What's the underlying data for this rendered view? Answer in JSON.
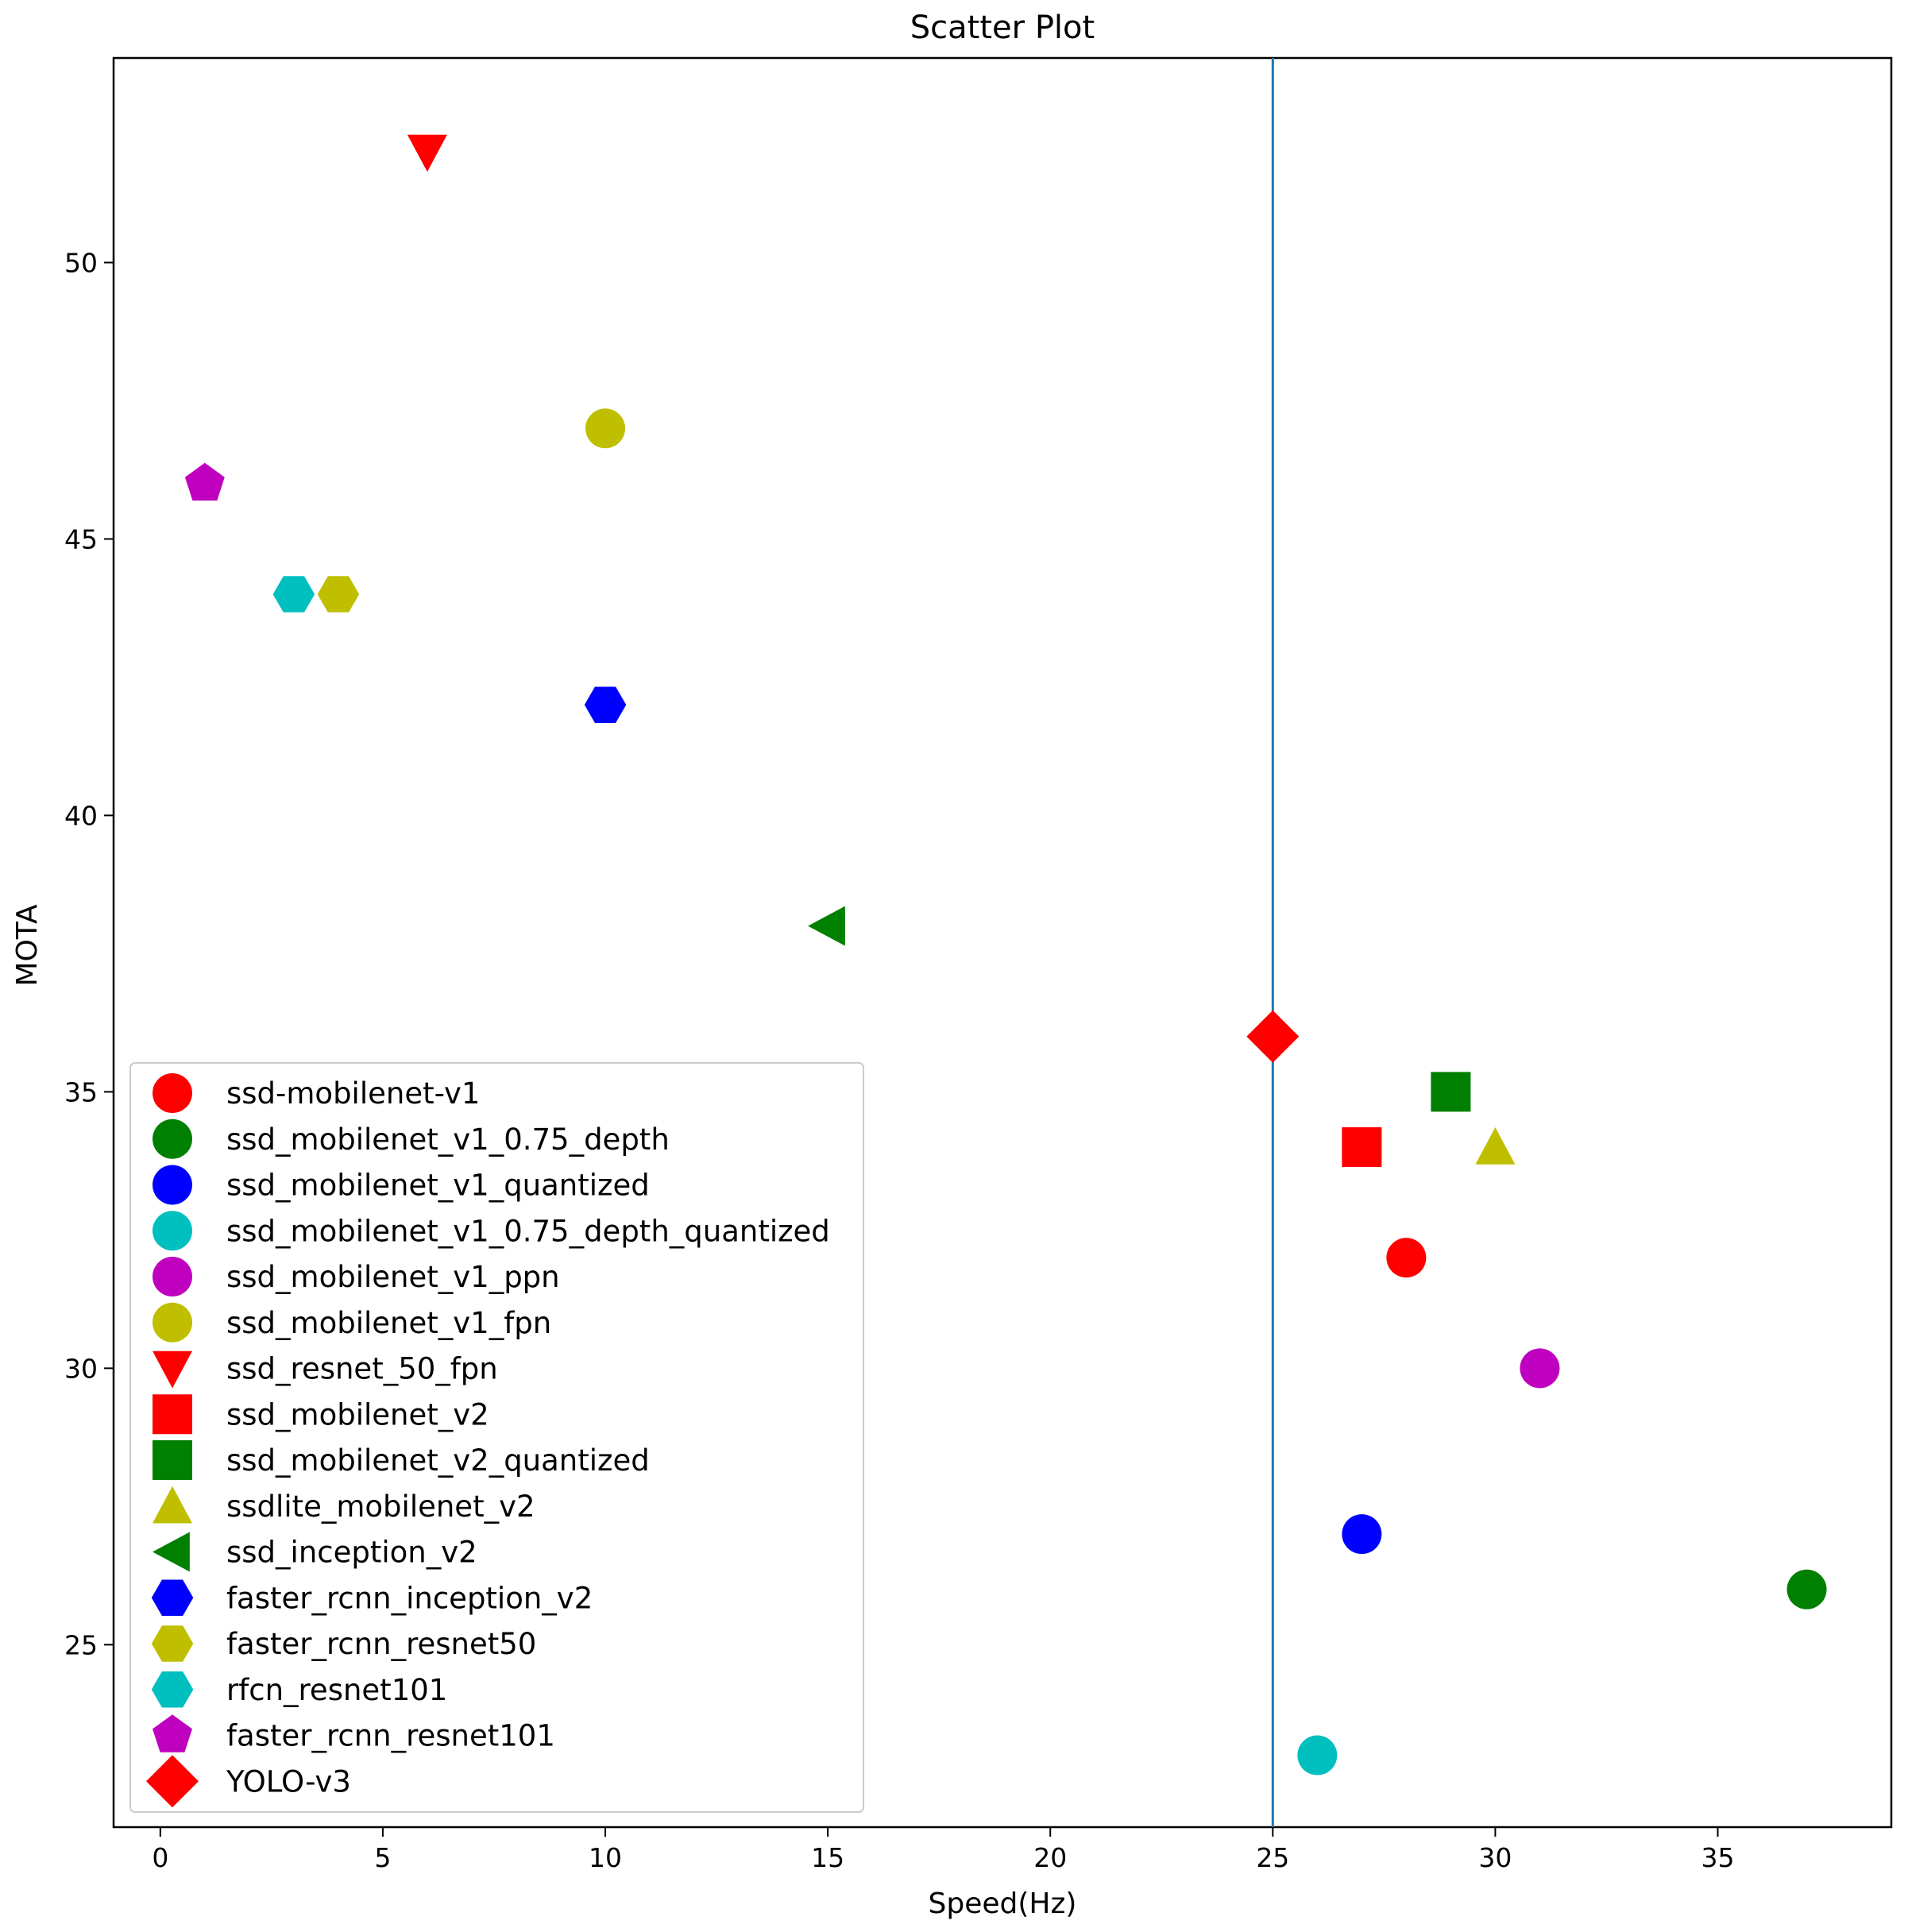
{
  "chart_data": {
    "type": "scatter",
    "title": "Scatter Plot",
    "xlabel": "Speed(Hz)",
    "ylabel": "MOTA",
    "xlim": [
      -1.05,
      38.9
    ],
    "ylim": [
      21.7,
      53.7
    ],
    "xticks": [
      0,
      5,
      10,
      15,
      20,
      25,
      30,
      35
    ],
    "yticks": [
      25,
      30,
      35,
      40,
      45,
      50
    ],
    "grid": false,
    "legend_position": "lower-left",
    "reference_line": {
      "orientation": "vertical",
      "x": 25,
      "color": "#1f77b4"
    },
    "series": [
      {
        "name": "ssd-mobilenet-v1",
        "marker": "circle",
        "color": "#ff0000",
        "points": [
          {
            "x": 28,
            "y": 32
          }
        ]
      },
      {
        "name": "ssd_mobilenet_v1_0.75_depth",
        "marker": "circle",
        "color": "#008000",
        "points": [
          {
            "x": 37,
            "y": 26
          }
        ]
      },
      {
        "name": "ssd_mobilenet_v1_quantized",
        "marker": "circle",
        "color": "#0000ff",
        "points": [
          {
            "x": 27,
            "y": 27
          }
        ]
      },
      {
        "name": "ssd_mobilenet_v1_0.75_depth_quantized",
        "marker": "circle",
        "color": "#00bfbf",
        "points": [
          {
            "x": 26,
            "y": 23
          }
        ]
      },
      {
        "name": "ssd_mobilenet_v1_ppn",
        "marker": "circle",
        "color": "#bf00bf",
        "points": [
          {
            "x": 31,
            "y": 30
          }
        ]
      },
      {
        "name": "ssd_mobilenet_v1_fpn",
        "marker": "circle",
        "color": "#bfbf00",
        "points": [
          {
            "x": 10,
            "y": 47
          }
        ]
      },
      {
        "name": "ssd_resnet_50_fpn",
        "marker": "triangle-down",
        "color": "#ff0000",
        "points": [
          {
            "x": 6,
            "y": 52
          }
        ]
      },
      {
        "name": "ssd_mobilenet_v2",
        "marker": "square",
        "color": "#ff0000",
        "points": [
          {
            "x": 27,
            "y": 34
          }
        ]
      },
      {
        "name": "ssd_mobilenet_v2_quantized",
        "marker": "square",
        "color": "#008000",
        "points": [
          {
            "x": 29,
            "y": 35
          }
        ]
      },
      {
        "name": "ssdlite_mobilenet_v2",
        "marker": "triangle-up",
        "color": "#bfbf00",
        "points": [
          {
            "x": 30,
            "y": 34
          }
        ]
      },
      {
        "name": "ssd_inception_v2",
        "marker": "triangle-left",
        "color": "#008000",
        "points": [
          {
            "x": 15,
            "y": 38
          }
        ]
      },
      {
        "name": "faster_rcnn_inception_v2",
        "marker": "hexagon",
        "color": "#0000ff",
        "points": [
          {
            "x": 10,
            "y": 42
          }
        ]
      },
      {
        "name": "faster_rcnn_resnet50",
        "marker": "hexagon",
        "color": "#bfbf00",
        "points": [
          {
            "x": 4,
            "y": 44
          }
        ]
      },
      {
        "name": "rfcn_resnet101",
        "marker": "hexagon",
        "color": "#00bfbf",
        "points": [
          {
            "x": 3,
            "y": 44
          }
        ]
      },
      {
        "name": "faster_rcnn_resnet101",
        "marker": "pentagon",
        "color": "#bf00bf",
        "points": [
          {
            "x": 1,
            "y": 46
          }
        ]
      },
      {
        "name": "YOLO-v3",
        "marker": "diamond",
        "color": "#ff0000",
        "points": [
          {
            "x": 25,
            "y": 36
          }
        ]
      }
    ]
  }
}
